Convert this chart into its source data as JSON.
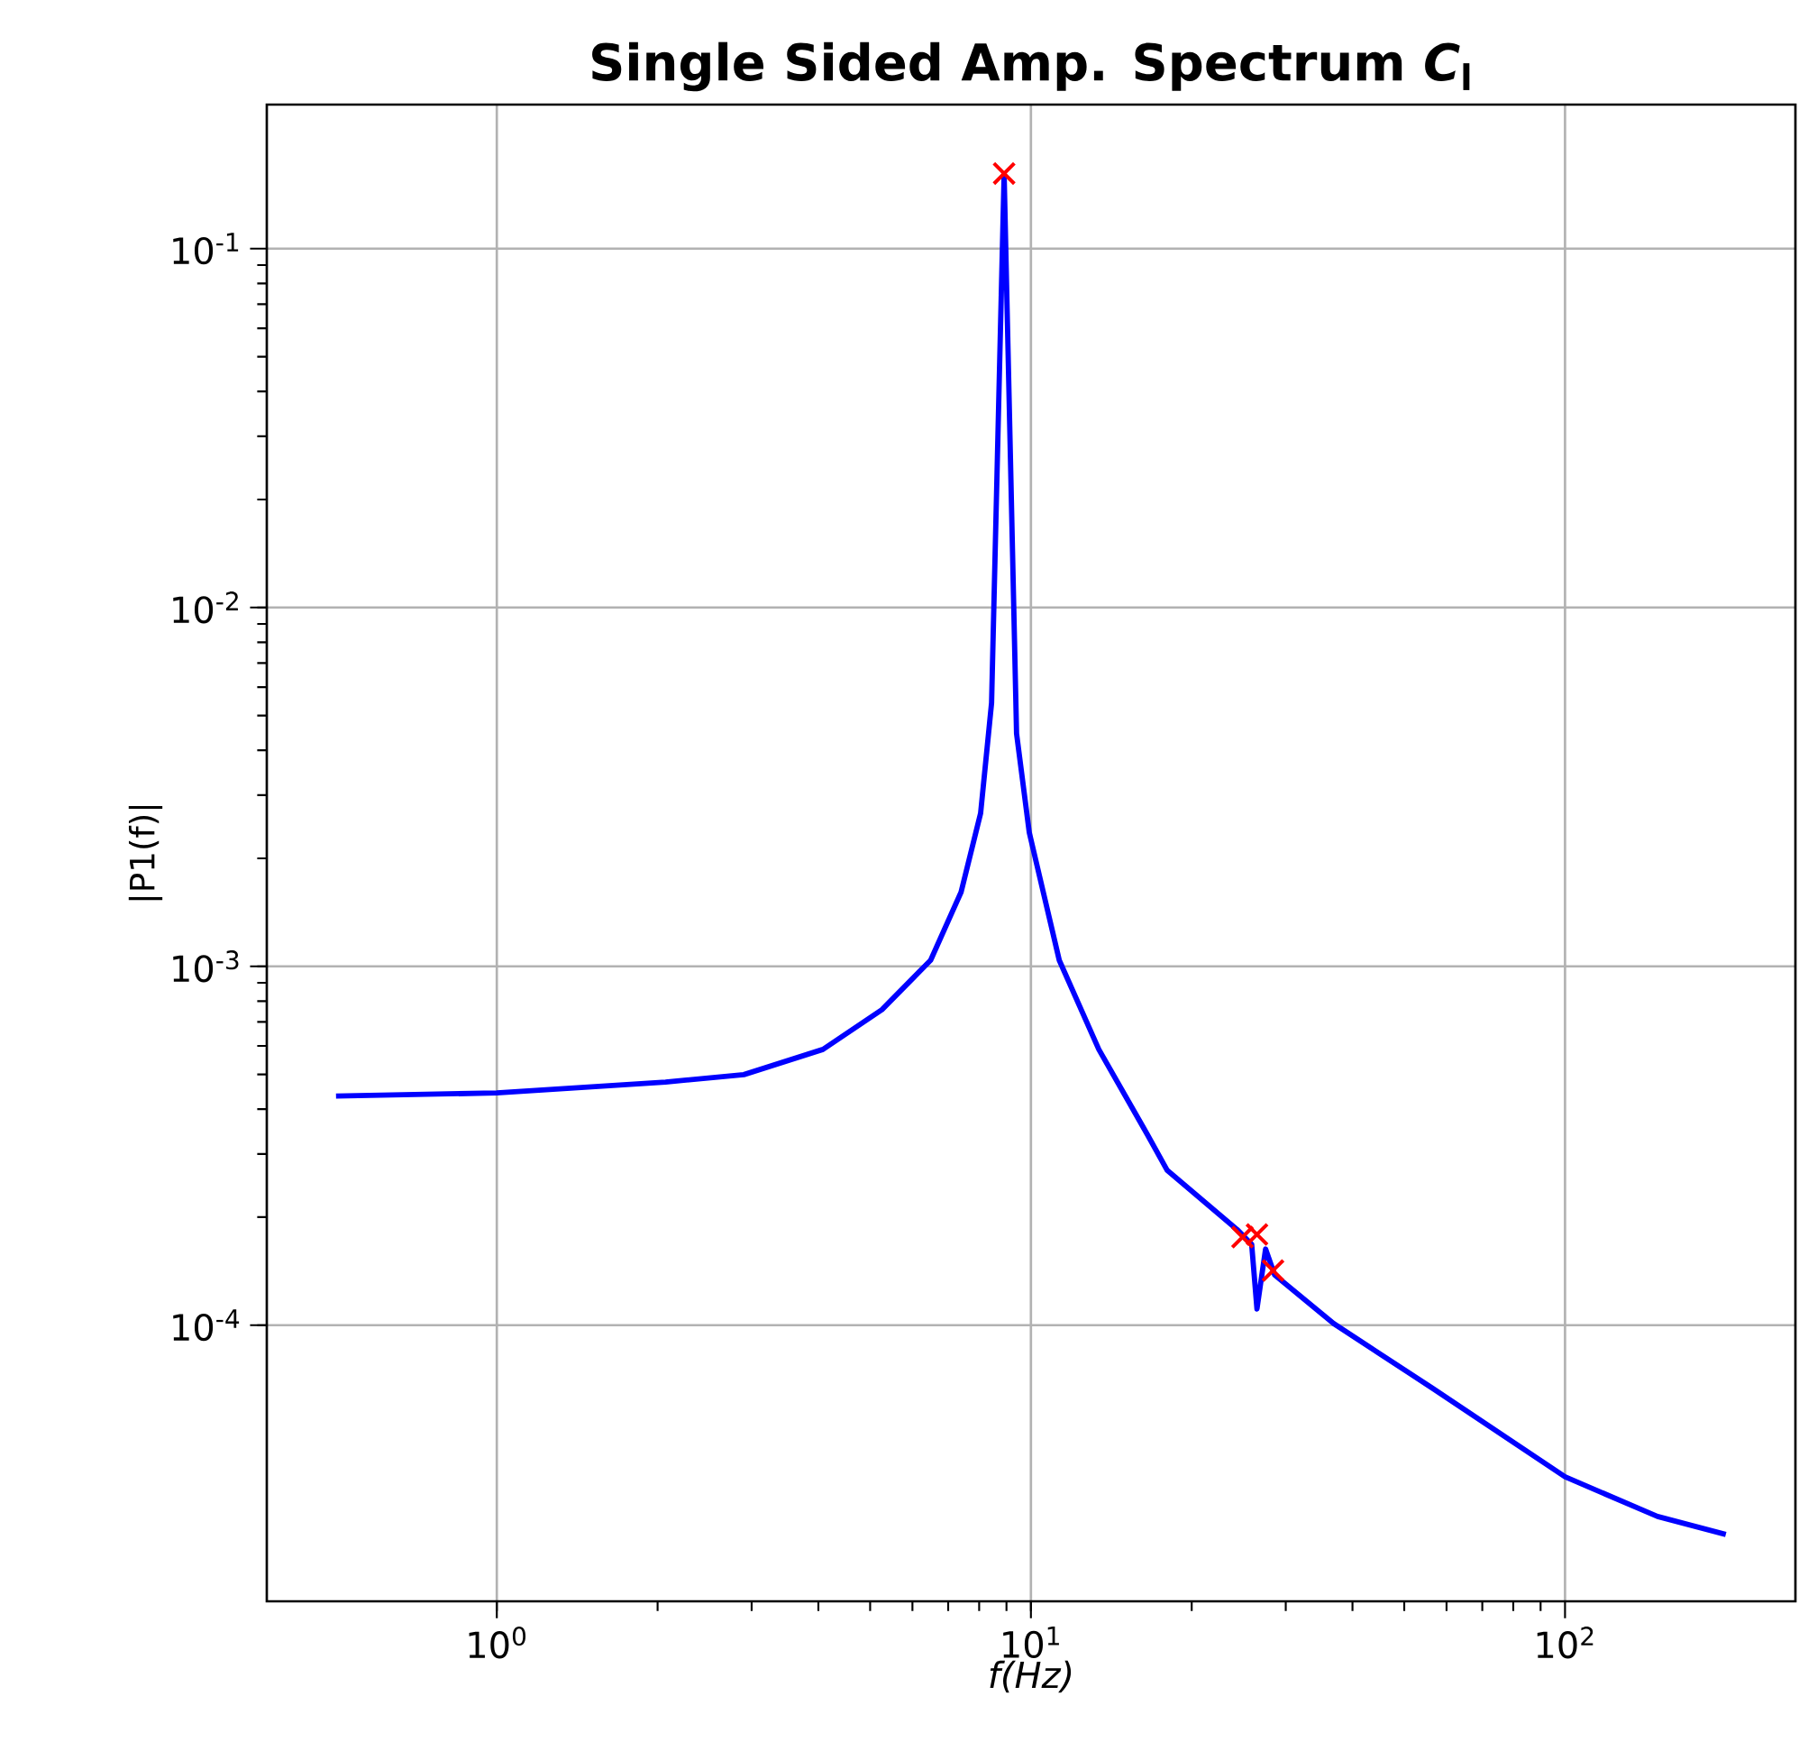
{
  "chart_data": {
    "type": "line",
    "title": "Single Sided Amp. Spectrum *C*$_{l}$",
    "xlabel": "f(Hz)",
    "ylabel": "|P1(f)|",
    "log": "xy",
    "grid": true,
    "xlim": [
      0.371,
      270
    ],
    "ylim": [
      1.7e-05,
      0.252
    ],
    "xticks": [
      {
        "value": 1,
        "label": "10$^{0}$"
      },
      {
        "value": 10,
        "label": "10$^{1}$"
      },
      {
        "value": 100,
        "label": "10$^{2}$"
      }
    ],
    "yticks": [
      {
        "value": 0.0001,
        "label": "10$^{-4}$"
      },
      {
        "value": 0.001,
        "label": "10$^{-3}$"
      },
      {
        "value": 0.01,
        "label": "10$^{-2}$"
      },
      {
        "value": 0.1,
        "label": "10$^{-1}$"
      }
    ],
    "series": [
      {
        "color": "#0000ff",
        "marker": "none",
        "line_style": "solid",
        "x": [
          0.5,
          1.0,
          2.07,
          2.9,
          4.08,
          5.26,
          6.49,
          7.4,
          8.05,
          8.44,
          8.91,
          9.4,
          9.93,
          11.3,
          13.4,
          16.5,
          18.0,
          24.3,
          25.9,
          26.5,
          27.5,
          28.6,
          36.9,
          56.5,
          100,
          149,
          200
        ],
        "values": [
          0.000435,
          0.000444,
          0.000476,
          0.000499,
          0.000587,
          0.000757,
          0.00104,
          0.00161,
          0.00267,
          0.00542,
          0.161,
          0.00445,
          0.00236,
          0.00104,
          0.000587,
          0.000341,
          0.00027,
          0.000185,
          0.000168,
          0.000111,
          0.000163,
          0.000138,
          0.000101,
          6.67e-05,
          3.78e-05,
          2.93e-05,
          2.61e-05
        ]
      },
      {
        "type": "scatter",
        "color": "#ff0000",
        "marker": "cross",
        "x": [
          8.91,
          24.9,
          26.5,
          28.4
        ],
        "values": [
          0.162,
          0.000176,
          0.000179,
          0.000142
        ]
      }
    ]
  }
}
